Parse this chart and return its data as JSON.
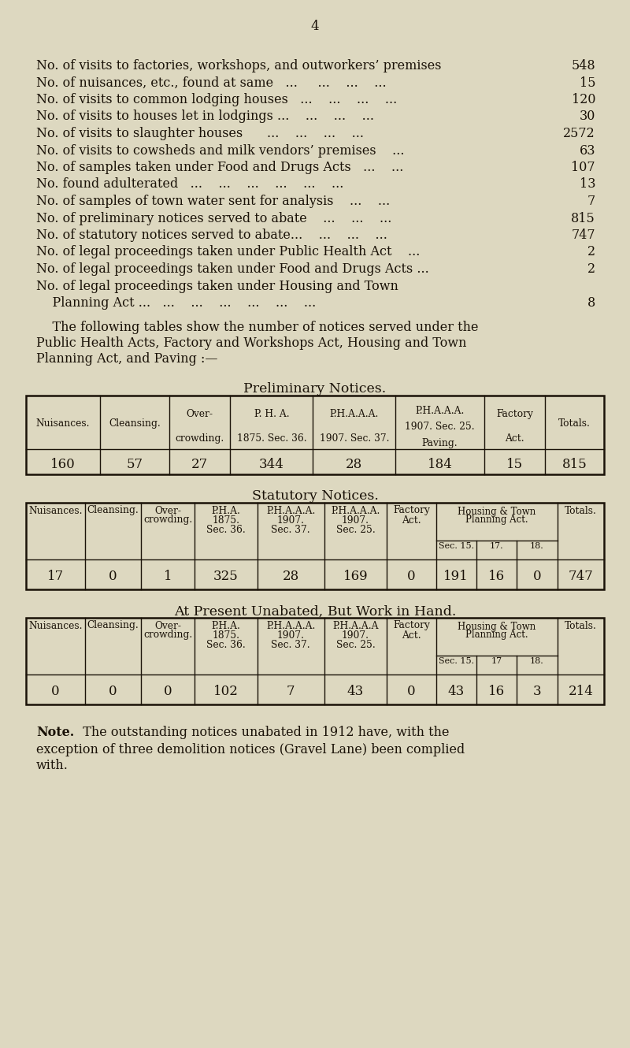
{
  "bg_color": "#ddd8c0",
  "text_color": "#1a1208",
  "page_number": "4",
  "bullet_lines": [
    [
      "No. of visits to factories, workshops, and outworkers’ premises",
      "548"
    ],
    [
      "No. of nuisances, etc., found at same   ...     ...    ...    ...",
      "15"
    ],
    [
      "No. of visits to common lodging houses   ...    ...    ...    ...",
      "120"
    ],
    [
      "No. of visits to houses let in lodgings ...    ...    ...    ...  ",
      "30"
    ],
    [
      "No. of visits to slaughter houses      ...    ...    ...    ...",
      "2572"
    ],
    [
      "No. of visits to cowsheds and milk vendors’ premises    ...",
      "63"
    ],
    [
      "No. of samples taken under Food and Drugs Acts   ...    ...",
      "107"
    ],
    [
      "No. found adulterated   ...    ...    ...    ...    ...    ...",
      "13"
    ],
    [
      "No. of samples of town water sent for analysis    ...    ...",
      "7"
    ],
    [
      "No. of preliminary notices served to abate    ...    ...    ...",
      "815"
    ],
    [
      "No. of statutory notices served to abate...    ...    ...    ...",
      "747"
    ],
    [
      "No. of legal proceedings taken under Public Health Act    ...",
      "2"
    ],
    [
      "No. of legal proceedings taken under Food and Drugs Acts ...",
      "2"
    ],
    [
      "No. of legal proceedings taken under Housing and Town",
      ""
    ],
    [
      "    Planning Act ...   ...    ...    ...    ...    ...    ...",
      "8"
    ]
  ],
  "following_text_lines": [
    "    The following tables show the number of notices served under the",
    "Public Health Acts, Factory and Workshops Act, Housing and Town",
    "Planning Act, and Paving :—"
  ],
  "table1_title": "Preliminary Notices.",
  "table1_col_headers": [
    "Nuisances.",
    "Cleansing.",
    "Over-\ncrowding.",
    "P. H. A.\n1875. Sec. 36.",
    "P.H.A.A.A.\n1907. Sec. 37.",
    "P.H.A.A.A.\n1907. Sec. 25.\nPaving.",
    "Factory\nAct.",
    "Totals."
  ],
  "table1_col_widths": [
    88,
    82,
    72,
    98,
    98,
    105,
    72,
    70
  ],
  "table1_data": [
    "160",
    "57",
    "27",
    "344",
    "28",
    "184",
    "15",
    "815"
  ],
  "table2_title": "Statutory Notices.",
  "table2_col_headers": [
    "Nuisances.",
    "Cleansing.",
    "Over-\ncrowding.",
    "P.H.A.\n1875.\nSec. 36.",
    "P.H.A.A.A.\n1907.\nSec. 37.",
    "P.H.A.A.A.\n1907.\nSec. 25.",
    "Factory\nAct.",
    "Housing & Town\nPlanning Act.",
    "Totals."
  ],
  "table2_col_widths": [
    72,
    68,
    66,
    76,
    82,
    76,
    60,
    148,
    57
  ],
  "table2_housing_sub": [
    "Sec. 15.",
    "17.",
    "18."
  ],
  "table2_data_main": [
    "17",
    "0",
    "1",
    "325",
    "28",
    "169",
    "0",
    "747"
  ],
  "table2_data_housing": [
    "191",
    "16",
    "0"
  ],
  "table3_title": "At Present Unabated, But Work in Hand.",
  "table3_col_headers": [
    "Nuisances.",
    "Cleansing.",
    "Over-\ncrowding.",
    "P.H.A.\n1875.\nSec. 36.",
    "P.H.A.A.A.\n1907.\nSec. 37.",
    "P.H.A.A.A\n1907.\nSec. 25.",
    "Factory\nAct.",
    "Housing & Town\nPlanning Act.",
    "Totals."
  ],
  "table3_col_widths": [
    72,
    68,
    66,
    76,
    82,
    76,
    60,
    148,
    57
  ],
  "table3_housing_sub": [
    "Sec. 15.",
    "17",
    "18."
  ],
  "table3_data_main": [
    "0",
    "0",
    "0",
    "102",
    "7",
    "43",
    "0",
    "214"
  ],
  "table3_data_housing": [
    "43",
    "16",
    "3"
  ],
  "note_label": "Note.",
  "note_text": "  The outstanding notices unabated in 1912 have, with the",
  "note_line2": "exception of three demolition notices (Gravel Lane) been complied",
  "note_line3": "with."
}
